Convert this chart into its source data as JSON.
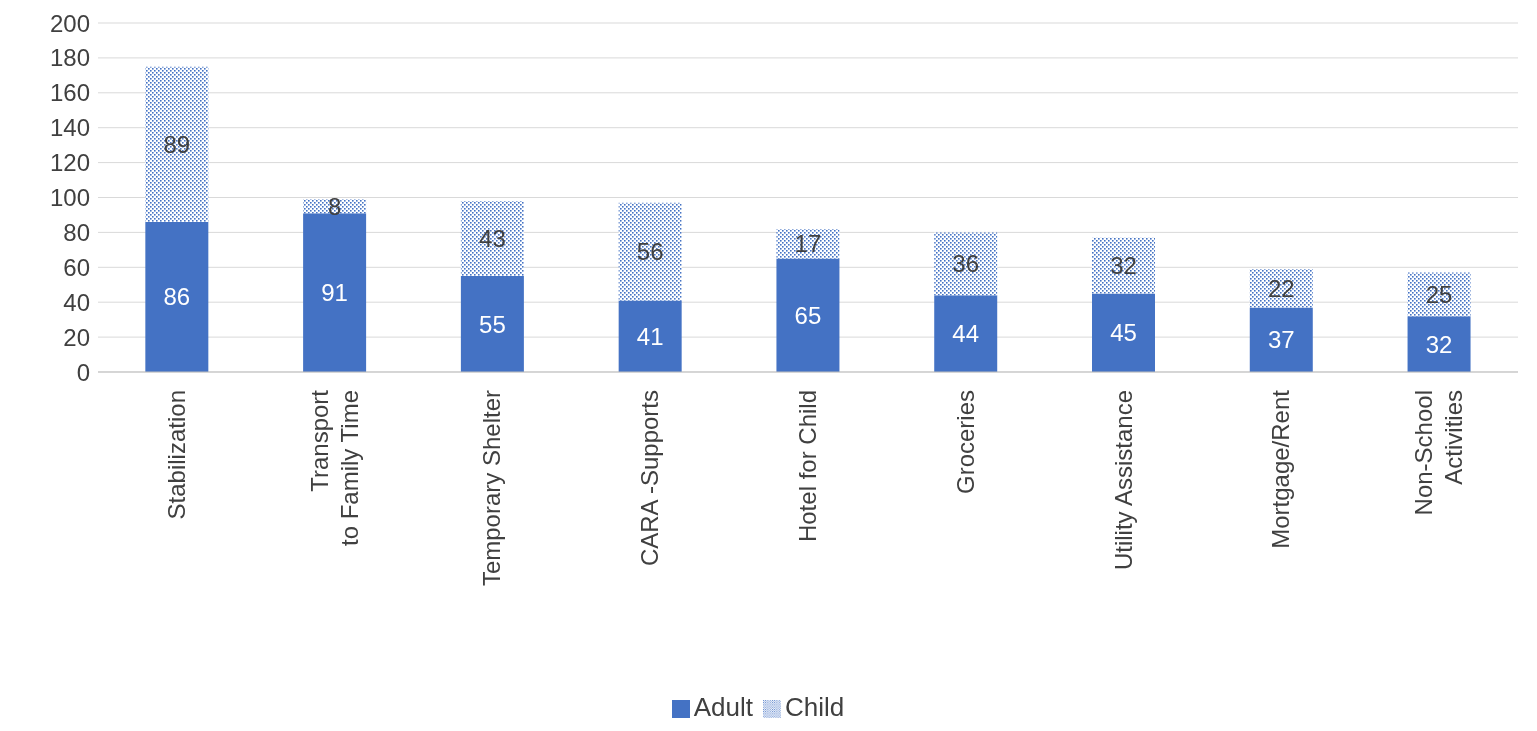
{
  "chart_data": {
    "type": "bar",
    "stacked": true,
    "categories": [
      "Stabilization",
      "Transport\nto Family Time",
      "Temporary Shelter",
      "CARA -Supports",
      "Hotel for Child",
      "Groceries",
      "Utility Assistance",
      "Mortgage/Rent",
      "Non-School\nActivities"
    ],
    "series": [
      {
        "name": "Adult",
        "color": "#4472c4",
        "values": [
          86,
          91,
          55,
          41,
          65,
          44,
          45,
          37,
          32
        ]
      },
      {
        "name": "Child",
        "color": "#4472c4",
        "values": [
          89,
          8,
          43,
          56,
          17,
          36,
          32,
          22,
          25
        ]
      }
    ],
    "ylim": [
      0,
      200
    ],
    "yticks": [
      0,
      20,
      40,
      60,
      80,
      100,
      120,
      140,
      160,
      180,
      200
    ],
    "grid": "y",
    "legend": "bottom",
    "data_labels": true
  }
}
